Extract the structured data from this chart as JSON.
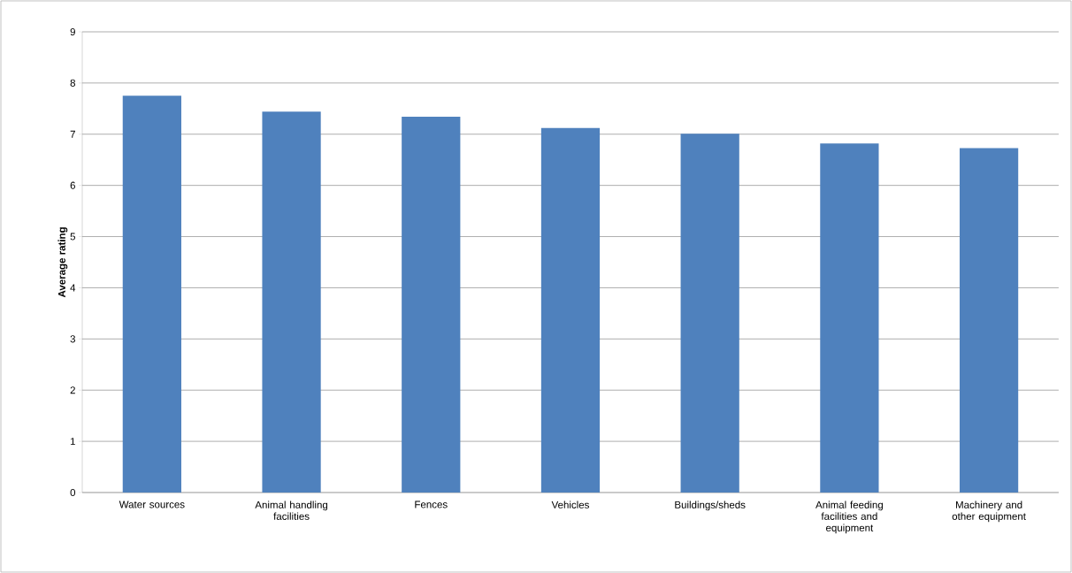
{
  "chart_data": {
    "type": "bar",
    "ylabel": "Average rating",
    "categories": [
      "Water sources",
      "Animal handling facilities",
      "Fences",
      "Vehicles",
      "Buildings/sheds",
      "Animal feeding facilities and equipment",
      "Machinery and other equipment"
    ],
    "values": [
      7.75,
      7.44,
      7.34,
      7.12,
      7.01,
      6.82,
      6.73
    ],
    "color": "#4f81bd",
    "ylim": [
      0,
      9
    ],
    "yticks": [
      0,
      1,
      2,
      3,
      4,
      5,
      6,
      7,
      8,
      9
    ],
    "grid": "y"
  }
}
